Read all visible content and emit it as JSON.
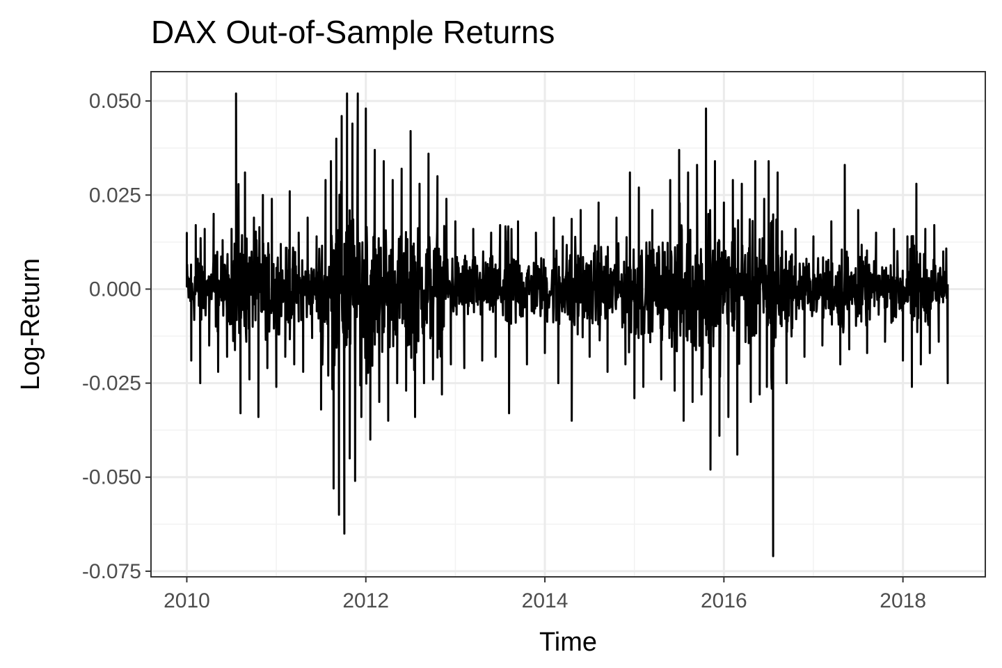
{
  "chart_data": {
    "type": "line",
    "title": "DAX Out-of-Sample Returns",
    "xlabel": "Time",
    "ylabel": "Log-Return",
    "xlim": [
      2009.6,
      2018.92
    ],
    "ylim": [
      -0.0765,
      0.0578
    ],
    "x_ticks": [
      2010,
      2012,
      2014,
      2016,
      2018
    ],
    "x_tick_labels": [
      "2010",
      "2012",
      "2014",
      "2016",
      "2018"
    ],
    "y_ticks": [
      -0.075,
      -0.05,
      -0.025,
      0.0,
      0.025,
      0.05
    ],
    "y_tick_labels": [
      "-0.075",
      "-0.050",
      "-0.025",
      "0.000",
      "0.025",
      "0.050"
    ],
    "x_minor_ticks": [
      2011,
      2013,
      2015,
      2017
    ],
    "y_minor_ticks": [
      -0.0625,
      -0.0375,
      -0.0125,
      0.0125,
      0.0375
    ],
    "grid": true,
    "legend": "none",
    "series": [
      {
        "color": "#000000",
        "line_width": 3,
        "sample_start": 2010.0,
        "sample_end": 2018.5,
        "x": [
          2010.0,
          2010.05,
          2010.1,
          2010.15,
          2010.2,
          2010.25,
          2010.3,
          2010.35,
          2010.4,
          2010.45,
          2010.5,
          2010.55,
          2010.6,
          2010.65,
          2010.7,
          2010.75,
          2010.8,
          2010.85,
          2010.9,
          2010.95,
          2011.0,
          2011.05,
          2011.1,
          2011.15,
          2011.2,
          2011.25,
          2011.3,
          2011.35,
          2011.4,
          2011.45,
          2011.5,
          2011.55,
          2011.58,
          2011.61,
          2011.64,
          2011.67,
          2011.7,
          2011.73,
          2011.76,
          2011.79,
          2011.82,
          2011.85,
          2011.88,
          2011.91,
          2011.95,
          2012.0,
          2012.05,
          2012.1,
          2012.15,
          2012.2,
          2012.25,
          2012.3,
          2012.35,
          2012.4,
          2012.45,
          2012.5,
          2012.55,
          2012.6,
          2012.65,
          2012.7,
          2012.75,
          2012.8,
          2012.85,
          2012.9,
          2012.95,
          2013.0,
          2013.1,
          2013.2,
          2013.3,
          2013.4,
          2013.45,
          2013.5,
          2013.6,
          2013.7,
          2013.8,
          2013.9,
          2014.0,
          2014.1,
          2014.15,
          2014.2,
          2014.3,
          2014.4,
          2014.5,
          2014.6,
          2014.7,
          2014.8,
          2014.9,
          2014.95,
          2015.0,
          2015.05,
          2015.1,
          2015.2,
          2015.3,
          2015.4,
          2015.45,
          2015.5,
          2015.55,
          2015.6,
          2015.65,
          2015.7,
          2015.75,
          2015.8,
          2015.85,
          2015.9,
          2015.95,
          2016.0,
          2016.05,
          2016.1,
          2016.15,
          2016.2,
          2016.3,
          2016.35,
          2016.4,
          2016.45,
          2016.48,
          2016.5,
          2016.55,
          2016.6,
          2016.7,
          2016.8,
          2016.9,
          2017.0,
          2017.1,
          2017.2,
          2017.3,
          2017.35,
          2017.4,
          2017.5,
          2017.6,
          2017.7,
          2017.8,
          2017.9,
          2018.0,
          2018.05,
          2018.1,
          2018.15,
          2018.2,
          2018.25,
          2018.3,
          2018.35,
          2018.4,
          2018.45,
          2018.5
        ],
        "y": [
          0.015,
          -0.019,
          0.017,
          -0.025,
          0.016,
          -0.015,
          0.02,
          -0.022,
          0.013,
          -0.018,
          0.016,
          0.052,
          -0.033,
          0.031,
          -0.024,
          0.019,
          -0.034,
          0.025,
          -0.021,
          0.024,
          -0.026,
          0.012,
          -0.018,
          0.026,
          -0.02,
          0.015,
          -0.022,
          0.019,
          -0.013,
          0.014,
          -0.032,
          0.029,
          -0.023,
          0.034,
          -0.053,
          0.04,
          -0.06,
          0.046,
          -0.065,
          0.052,
          -0.045,
          0.044,
          -0.051,
          0.052,
          -0.034,
          0.048,
          -0.04,
          0.037,
          -0.03,
          0.034,
          -0.035,
          0.029,
          -0.025,
          0.032,
          -0.027,
          0.042,
          -0.034,
          0.028,
          -0.025,
          0.036,
          -0.024,
          0.03,
          -0.028,
          0.024,
          -0.02,
          0.018,
          -0.021,
          0.016,
          -0.019,
          0.015,
          -0.018,
          0.017,
          -0.033,
          0.018,
          -0.02,
          0.015,
          -0.017,
          0.019,
          -0.025,
          0.014,
          -0.035,
          0.021,
          -0.018,
          0.023,
          -0.022,
          0.019,
          -0.02,
          0.031,
          -0.029,
          0.027,
          -0.026,
          0.021,
          -0.024,
          0.029,
          -0.027,
          0.037,
          -0.035,
          0.031,
          -0.03,
          0.033,
          -0.028,
          0.048,
          -0.048,
          0.034,
          -0.039,
          0.023,
          -0.034,
          0.029,
          -0.044,
          0.028,
          -0.03,
          0.034,
          -0.028,
          0.024,
          -0.026,
          0.034,
          -0.071,
          0.031,
          -0.025,
          0.016,
          -0.018,
          0.014,
          -0.015,
          0.018,
          -0.02,
          0.033,
          -0.016,
          0.021,
          -0.017,
          0.015,
          -0.014,
          0.016,
          -0.019,
          0.014,
          -0.026,
          0.028,
          -0.02,
          0.016,
          -0.017,
          0.017,
          -0.014,
          0.01,
          -0.025
        ]
      }
    ]
  }
}
